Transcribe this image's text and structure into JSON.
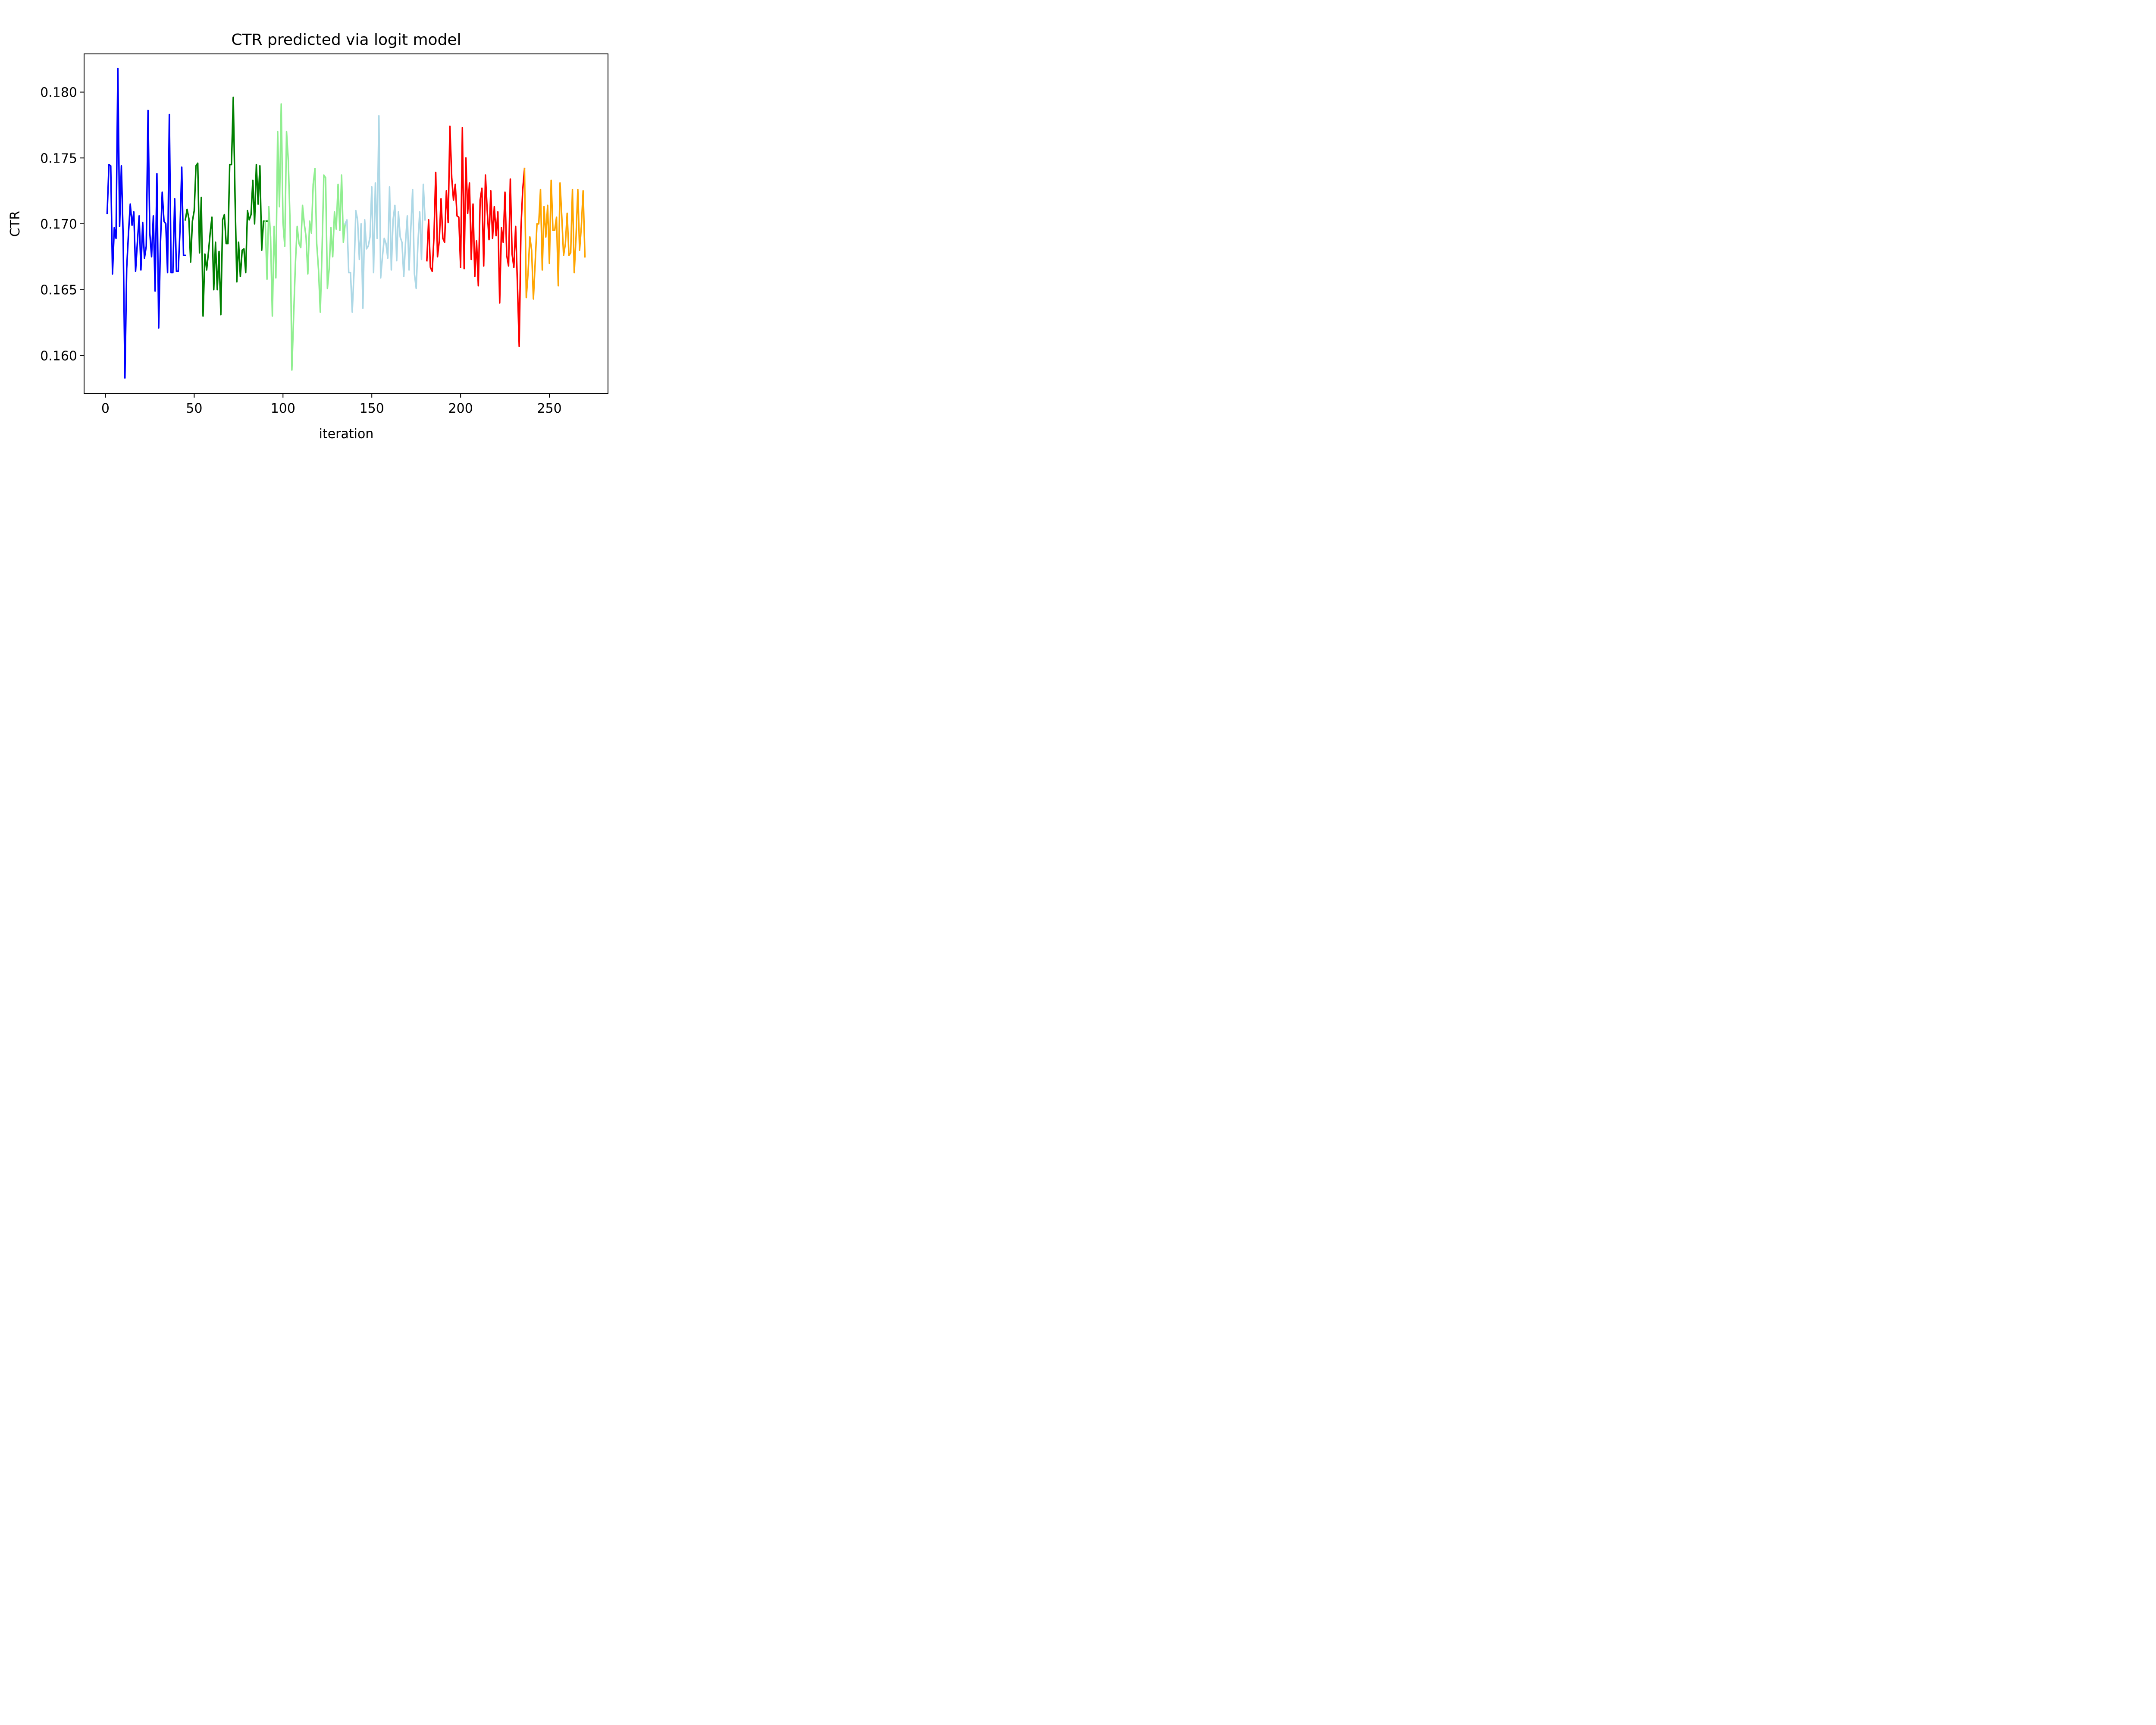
{
  "chart_data": {
    "type": "line",
    "title": "CTR predicted via logit model",
    "xlabel": "iteration",
    "ylabel": "CTR",
    "xlim": [
      -12,
      283
    ],
    "ylim": [
      0.1571,
      0.1829
    ],
    "xticks": [
      0,
      50,
      100,
      150,
      200,
      250
    ],
    "xtick_labels": [
      "0",
      "50",
      "100",
      "150",
      "200",
      "250"
    ],
    "yticks": [
      0.16,
      0.165,
      0.17,
      0.175,
      0.18
    ],
    "ytick_labels": [
      "0.160",
      "0.165",
      "0.170",
      "0.175",
      "0.180"
    ],
    "grid": false,
    "legend": "none",
    "series": [
      {
        "color": "#0000ff",
        "x": [
          1,
          2,
          3,
          4,
          5,
          6,
          7,
          8,
          9,
          10,
          11,
          12,
          13,
          14,
          15,
          16,
          17,
          18,
          19,
          20,
          21,
          22,
          23,
          24,
          25,
          26,
          27,
          28,
          29,
          30,
          31,
          32,
          33,
          34,
          35,
          36,
          37,
          38,
          39,
          40,
          41,
          42,
          43,
          44,
          45
        ],
        "y": [
          0.1708,
          0.1745,
          0.1744,
          0.1662,
          0.1697,
          0.1689,
          0.1818,
          0.1698,
          0.1744,
          0.169,
          0.1583,
          0.1666,
          0.1693,
          0.1715,
          0.1699,
          0.1709,
          0.1664,
          0.1686,
          0.1706,
          0.1665,
          0.1701,
          0.1674,
          0.1683,
          0.1786,
          0.1693,
          0.1675,
          0.1706,
          0.1649,
          0.1738,
          0.1621,
          0.1685,
          0.1724,
          0.1702,
          0.17,
          0.1663,
          0.1783,
          0.1663,
          0.1663,
          0.1719,
          0.1664,
          0.1664,
          0.1695,
          0.1743,
          0.1676,
          0.1676
        ]
      },
      {
        "color": "#008000",
        "x": [
          45,
          46,
          47,
          48,
          49,
          50,
          51,
          52,
          53,
          54,
          55,
          56,
          57,
          58,
          59,
          60,
          61,
          62,
          63,
          64,
          65,
          66,
          67,
          68,
          69,
          70,
          71,
          72,
          73,
          74,
          75,
          76,
          77,
          78,
          79,
          80,
          81,
          82,
          83,
          84,
          85,
          86,
          87,
          88,
          89,
          90,
          91
        ],
        "y": [
          0.1703,
          0.1711,
          0.1704,
          0.1671,
          0.1702,
          0.171,
          0.1744,
          0.1746,
          0.1678,
          0.172,
          0.163,
          0.1677,
          0.1665,
          0.1678,
          0.1693,
          0.1705,
          0.165,
          0.1686,
          0.165,
          0.1679,
          0.1631,
          0.1703,
          0.1707,
          0.1685,
          0.1685,
          0.1745,
          0.1745,
          0.1796,
          0.172,
          0.1656,
          0.1686,
          0.166,
          0.168,
          0.1681,
          0.1663,
          0.171,
          0.1703,
          0.1707,
          0.1733,
          0.17,
          0.1745,
          0.1715,
          0.1744,
          0.168,
          0.1702,
          0.1702,
          0.1702
        ]
      },
      {
        "color": "#90ee90",
        "x": [
          90,
          91,
          92,
          93,
          94,
          95,
          96,
          97,
          98,
          99,
          100,
          101,
          102,
          103,
          104,
          105,
          106,
          107,
          108,
          109,
          110,
          111,
          112,
          113,
          114,
          115,
          116,
          117,
          118,
          119,
          120,
          121,
          122,
          123,
          124,
          125,
          126,
          127,
          128,
          129,
          130,
          131,
          132,
          133,
          134,
          135
        ],
        "y": [
          0.1702,
          0.1658,
          0.1713,
          0.169,
          0.163,
          0.1698,
          0.1659,
          0.177,
          0.1713,
          0.1791,
          0.1701,
          0.1683,
          0.177,
          0.1748,
          0.17,
          0.1589,
          0.163,
          0.167,
          0.1698,
          0.1685,
          0.1682,
          0.1714,
          0.17,
          0.169,
          0.1662,
          0.1702,
          0.1693,
          0.173,
          0.1742,
          0.1685,
          0.1665,
          0.1633,
          0.168,
          0.1737,
          0.1735,
          0.1651,
          0.1666,
          0.1697,
          0.1675,
          0.1709,
          0.1696,
          0.173,
          0.1695,
          0.1737,
          0.1686,
          0.17
        ]
      },
      {
        "color": "#add8e6",
        "x": [
          135,
          136,
          137,
          138,
          139,
          140,
          141,
          142,
          143,
          144,
          145,
          146,
          147,
          148,
          149,
          150,
          151,
          152,
          153,
          154,
          155,
          156,
          157,
          158,
          159,
          160,
          161,
          162,
          163,
          164,
          165,
          166,
          167,
          168,
          169,
          170,
          171,
          172,
          173,
          174,
          175,
          176,
          177,
          178,
          179,
          180
        ],
        "y": [
          0.17,
          0.1703,
          0.1663,
          0.1663,
          0.1633,
          0.1663,
          0.171,
          0.1703,
          0.1673,
          0.17,
          0.1636,
          0.1703,
          0.1681,
          0.1683,
          0.169,
          0.1728,
          0.1663,
          0.1731,
          0.1689,
          0.1782,
          0.1659,
          0.1675,
          0.1689,
          0.1685,
          0.1674,
          0.1728,
          0.1665,
          0.1703,
          0.1714,
          0.1672,
          0.1709,
          0.169,
          0.1686,
          0.166,
          0.1686,
          0.1706,
          0.1665,
          0.1697,
          0.1726,
          0.1662,
          0.1651,
          0.1686,
          0.1709,
          0.1673,
          0.173,
          0.1703
        ]
      },
      {
        "color": "#ff0000",
        "x": [
          181,
          182,
          183,
          184,
          185,
          186,
          187,
          188,
          189,
          190,
          191,
          192,
          193,
          194,
          195,
          196,
          197,
          198,
          199,
          200,
          201,
          202,
          203,
          204,
          205,
          206,
          207,
          208,
          209,
          210,
          211,
          212,
          213,
          214,
          215,
          216,
          217,
          218,
          219,
          220,
          221,
          222,
          223,
          224,
          225,
          226,
          227,
          228,
          229,
          230,
          231,
          232,
          233,
          234,
          235,
          236
        ],
        "y": [
          0.1672,
          0.1703,
          0.1667,
          0.1664,
          0.169,
          0.1739,
          0.1675,
          0.1687,
          0.1719,
          0.1689,
          0.1686,
          0.1725,
          0.1701,
          0.1774,
          0.1735,
          0.1718,
          0.173,
          0.1706,
          0.1705,
          0.1667,
          0.1773,
          0.1666,
          0.175,
          0.1708,
          0.1731,
          0.1673,
          0.1715,
          0.166,
          0.1687,
          0.1653,
          0.1718,
          0.1727,
          0.1668,
          0.1737,
          0.171,
          0.1688,
          0.1725,
          0.1689,
          0.1713,
          0.1691,
          0.1709,
          0.164,
          0.1697,
          0.1686,
          0.1724,
          0.1676,
          0.1668,
          0.1734,
          0.1677,
          0.1667,
          0.1698,
          0.1655,
          0.1607,
          0.1697,
          0.1726,
          0.1742
        ]
      },
      {
        "color": "#ffa500",
        "x": [
          236,
          237,
          238,
          239,
          240,
          241,
          242,
          243,
          244,
          245,
          246,
          247,
          248,
          249,
          250,
          251,
          252,
          253,
          254,
          255,
          256,
          257,
          258,
          259,
          260,
          261,
          262,
          263,
          264,
          265,
          266,
          267,
          268,
          269,
          270
        ],
        "y": [
          0.1742,
          0.1644,
          0.1663,
          0.169,
          0.168,
          0.1643,
          0.167,
          0.17,
          0.17,
          0.1726,
          0.1665,
          0.1713,
          0.169,
          0.1714,
          0.167,
          0.1733,
          0.1695,
          0.1695,
          0.1705,
          0.1653,
          0.1731,
          0.1705,
          0.1676,
          0.1685,
          0.1708,
          0.1676,
          0.1678,
          0.1726,
          0.1663,
          0.169,
          0.1726,
          0.168,
          0.1698,
          0.1725,
          0.1675
        ]
      }
    ]
  }
}
